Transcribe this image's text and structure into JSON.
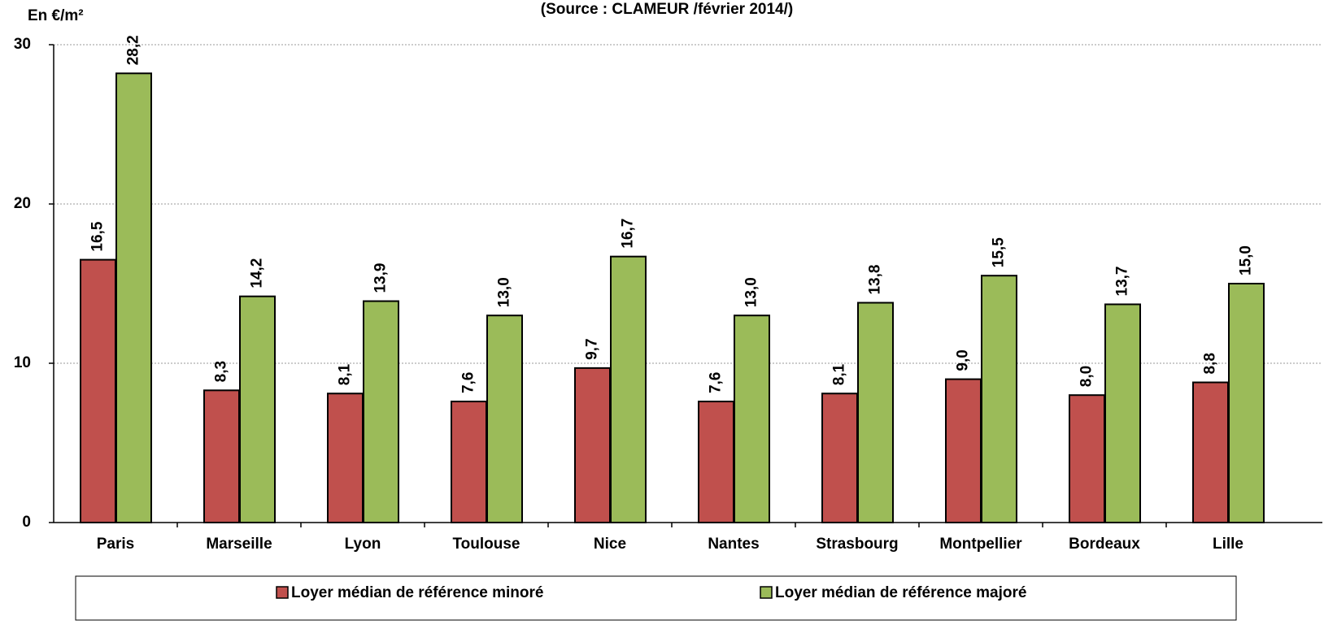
{
  "chart_data": {
    "type": "bar",
    "title": "(Source : CLAMEUR /février 2014/)",
    "y_label": "En €/m²",
    "categories": [
      "Paris",
      "Marseille",
      "Lyon",
      "Toulouse",
      "Nice",
      "Nantes",
      "Strasbourg",
      "Montpellier",
      "Bordeaux",
      "Lille"
    ],
    "series": [
      {
        "name": "Loyer médian de référence minoré",
        "color": "#c0504d",
        "values": [
          16.5,
          8.3,
          8.1,
          7.6,
          9.7,
          7.6,
          8.1,
          9.0,
          8.0,
          8.8
        ],
        "value_labels": [
          "16,5",
          "8,3",
          "8,1",
          "7,6",
          "9,7",
          "7,6",
          "8,1",
          "9,0",
          "8,0",
          "8,8"
        ]
      },
      {
        "name": "Loyer médian de référence majoré",
        "color": "#9bbb59",
        "values": [
          28.2,
          14.2,
          13.9,
          13.0,
          16.7,
          13.0,
          13.8,
          15.5,
          13.7,
          15.0
        ],
        "value_labels": [
          "28,2",
          "14,2",
          "13,9",
          "13,0",
          "16,7",
          "13,0",
          "13,8",
          "15,5",
          "13,7",
          "15,0"
        ]
      }
    ],
    "ylim": [
      0,
      30
    ],
    "yticks": [
      0,
      10,
      20,
      30
    ],
    "grid": true,
    "legend": "bottom"
  }
}
